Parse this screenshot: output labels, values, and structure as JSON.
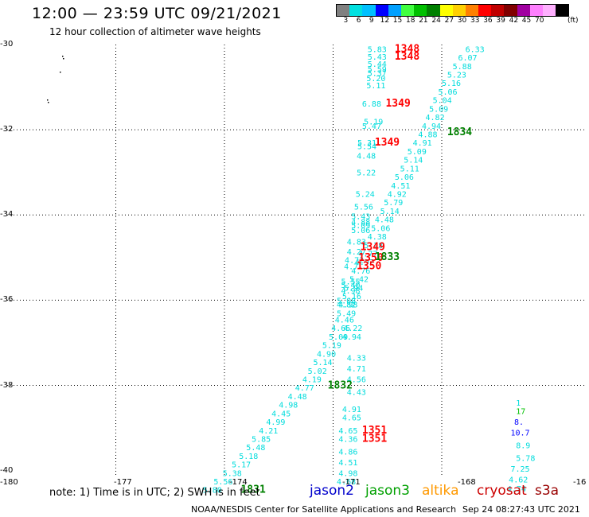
{
  "header": {
    "title": "12:00 — 23:59 UTC 09/21/2021",
    "subtitle": "12 hour collection of altimeter wave heights"
  },
  "color_scale": {
    "colors": [
      "#808080",
      "#00e0e0",
      "#00c0ff",
      "#0000ff",
      "#00a0ff",
      "#40ff40",
      "#00c000",
      "#008000",
      "#ffff00",
      "#ffd000",
      "#ff8000",
      "#ff0000",
      "#c00000",
      "#800000",
      "#a000a0",
      "#ff80ff",
      "#ffb0ff",
      "#000000"
    ],
    "labels": [
      "3",
      "6",
      "9",
      "12",
      "15",
      "18",
      "21",
      "24",
      "27",
      "30",
      "33",
      "36",
      "39",
      "42",
      "45",
      "70"
    ],
    "unit": "(ft)"
  },
  "axes": {
    "lat_labels": [
      "-30",
      "-32",
      "-34",
      "-36",
      "-38",
      "-40"
    ],
    "lon_labels": [
      "-180",
      "-177",
      "-174",
      "-171",
      "-168",
      "-16"
    ]
  },
  "cyan": "#00dcdc",
  "observations": [
    {
      "lon": -170.05,
      "lat": -30.1,
      "t": "5.83"
    },
    {
      "lon": -170.05,
      "lat": -30.28,
      "t": "5.43"
    },
    {
      "lon": -170.05,
      "lat": -30.45,
      "t": "5.44"
    },
    {
      "lon": -170.05,
      "lat": -30.57,
      "t": "5.59"
    },
    {
      "lon": -170.05,
      "lat": -30.66,
      "t": "5.37"
    },
    {
      "lon": -170.08,
      "lat": -30.78,
      "t": "5.20"
    },
    {
      "lon": -170.08,
      "lat": -30.95,
      "t": "5.11"
    },
    {
      "lon": -170.2,
      "lat": -31.38,
      "t": "6.88"
    },
    {
      "lon": -170.15,
      "lat": -31.8,
      "t": "5.19"
    },
    {
      "lon": -170.2,
      "lat": -31.9,
      "t": "5.47"
    },
    {
      "lon": -170.33,
      "lat": -32.3,
      "t": "5.31"
    },
    {
      "lon": -170.33,
      "lat": -32.38,
      "t": "5.54"
    },
    {
      "lon": -170.35,
      "lat": -32.6,
      "t": "4.48"
    },
    {
      "lon": -170.35,
      "lat": -33.0,
      "t": "5.22"
    },
    {
      "lon": -170.38,
      "lat": -33.5,
      "t": "5.24"
    },
    {
      "lon": -170.42,
      "lat": -33.8,
      "t": "5.56"
    },
    {
      "lon": -170.5,
      "lat": -34.02,
      "t": "5.43"
    },
    {
      "lon": -170.5,
      "lat": -34.15,
      "t": "4.88"
    },
    {
      "lon": -170.5,
      "lat": -34.24,
      "t": "5.09"
    },
    {
      "lon": -170.5,
      "lat": -34.35,
      "t": "5.06"
    },
    {
      "lon": -170.62,
      "lat": -34.62,
      "t": "4.83"
    },
    {
      "lon": -170.62,
      "lat": -34.85,
      "t": "4.27"
    },
    {
      "lon": -170.68,
      "lat": -35.05,
      "t": "4.72"
    },
    {
      "lon": -170.7,
      "lat": -35.2,
      "t": "4.7"
    },
    {
      "lon": -170.78,
      "lat": -35.55,
      "t": "5.55"
    },
    {
      "lon": -170.78,
      "lat": -35.64,
      "t": "5.40"
    },
    {
      "lon": -170.78,
      "lat": -35.77,
      "t": "4.98"
    },
    {
      "lon": -170.9,
      "lat": -36.0,
      "t": "5.08"
    },
    {
      "lon": -170.9,
      "lat": -36.1,
      "t": "4.82"
    },
    {
      "lon": -170.95,
      "lat": -36.45,
      "t": "4.46"
    },
    {
      "lon": -171.05,
      "lat": -36.65,
      "t": "4.65"
    },
    {
      "lon": -170.72,
      "lat": -36.65,
      "t": "4.22"
    },
    {
      "lon": -171.12,
      "lat": -36.85,
      "t": "5.09"
    },
    {
      "lon": -170.75,
      "lat": -36.85,
      "t": "4.94"
    },
    {
      "lon": -171.3,
      "lat": -37.05,
      "t": "5.19"
    },
    {
      "lon": -171.45,
      "lat": -37.25,
      "t": "4.90"
    },
    {
      "lon": -171.55,
      "lat": -37.45,
      "t": "5.14"
    },
    {
      "lon": -171.7,
      "lat": -37.65,
      "t": "5.02"
    },
    {
      "lon": -170.62,
      "lat": -37.35,
      "t": "4.33"
    },
    {
      "lon": -170.62,
      "lat": -37.6,
      "t": "4.71"
    },
    {
      "lon": -170.62,
      "lat": -37.85,
      "t": "4.56"
    },
    {
      "lon": -171.85,
      "lat": -37.85,
      "t": "4.19"
    },
    {
      "lon": -172.05,
      "lat": -38.05,
      "t": "4.77"
    },
    {
      "lon": -170.62,
      "lat": -38.15,
      "t": "4.43"
    },
    {
      "lon": -172.25,
      "lat": -38.25,
      "t": "4.48"
    },
    {
      "lon": -172.5,
      "lat": -38.45,
      "t": "4.98"
    },
    {
      "lon": -170.75,
      "lat": -38.55,
      "t": "4.91"
    },
    {
      "lon": -172.7,
      "lat": -38.65,
      "t": "4.45"
    },
    {
      "lon": -170.75,
      "lat": -38.75,
      "t": "4.65"
    },
    {
      "lon": -172.85,
      "lat": -38.85,
      "t": "4.99"
    },
    {
      "lon": -173.05,
      "lat": -39.05,
      "t": "4.21"
    },
    {
      "lon": -170.85,
      "lat": -39.05,
      "t": "4.65"
    },
    {
      "lon": -173.25,
      "lat": -39.25,
      "t": "5.85"
    },
    {
      "lon": -170.85,
      "lat": -39.25,
      "t": "4.36"
    },
    {
      "lon": -173.4,
      "lat": -39.45,
      "t": "5.48"
    },
    {
      "lon": -170.85,
      "lat": -39.55,
      "t": "4.86"
    },
    {
      "lon": -173.6,
      "lat": -39.65,
      "t": "5.18"
    },
    {
      "lon": -170.85,
      "lat": -39.8,
      "t": "4.51"
    },
    {
      "lon": -173.8,
      "lat": -39.85,
      "t": "5.17"
    },
    {
      "lon": -174.05,
      "lat": -40.05,
      "t": "5.38"
    },
    {
      "lon": -170.85,
      "lat": -40.05,
      "t": "4.98"
    },
    {
      "lon": -174.3,
      "lat": -40.25,
      "t": "5.56"
    },
    {
      "lon": -170.9,
      "lat": -40.25,
      "t": "4.68"
    },
    {
      "lon": -174.6,
      "lat": -40.45,
      "t": "5.80"
    },
    {
      "lon": -167.35,
      "lat": -30.1,
      "t": "6.33"
    },
    {
      "lon": -167.55,
      "lat": -30.3,
      "t": "6.07"
    },
    {
      "lon": -167.7,
      "lat": -30.5,
      "t": "5.88"
    },
    {
      "lon": -167.85,
      "lat": -30.7,
      "t": "5.23"
    },
    {
      "lon": -168.0,
      "lat": -30.9,
      "t": "5.16"
    },
    {
      "lon": -168.1,
      "lat": -31.1,
      "t": "5.06"
    },
    {
      "lon": -168.25,
      "lat": -31.3,
      "t": "5.04"
    },
    {
      "lon": -168.35,
      "lat": -31.5,
      "t": "5.09"
    },
    {
      "lon": -168.45,
      "lat": -31.7,
      "t": "4.82"
    },
    {
      "lon": -168.55,
      "lat": -31.9,
      "t": "4.94"
    },
    {
      "lon": -168.65,
      "lat": -32.1,
      "t": "4.88"
    },
    {
      "lon": -168.8,
      "lat": -32.3,
      "t": "4.91"
    },
    {
      "lon": -168.95,
      "lat": -32.5,
      "t": "5.09"
    },
    {
      "lon": -169.05,
      "lat": -32.7,
      "t": "5.14"
    },
    {
      "lon": -169.15,
      "lat": -32.9,
      "t": "5.11"
    },
    {
      "lon": -169.3,
      "lat": -33.1,
      "t": "5.06"
    },
    {
      "lon": -169.4,
      "lat": -33.3,
      "t": "4.51"
    },
    {
      "lon": -169.5,
      "lat": -33.5,
      "t": "4.92"
    },
    {
      "lon": -169.6,
      "lat": -33.7,
      "t": "5.79"
    },
    {
      "lon": -169.7,
      "lat": -33.9,
      "t": "5.14"
    },
    {
      "lon": -169.85,
      "lat": -34.1,
      "t": "4.48"
    },
    {
      "lon": -169.95,
      "lat": -34.3,
      "t": "5.06"
    },
    {
      "lon": -170.05,
      "lat": -34.5,
      "t": "4.38"
    },
    {
      "lon": -170.15,
      "lat": -34.7,
      "t": "5.28"
    },
    {
      "lon": -170.3,
      "lat": -34.9,
      "t": "4.77"
    },
    {
      "lon": -170.4,
      "lat": -35.1,
      "t": "4.92"
    },
    {
      "lon": -170.5,
      "lat": -35.3,
      "t": "4.76"
    },
    {
      "lon": -170.55,
      "lat": -35.5,
      "t": "5.42"
    },
    {
      "lon": -170.7,
      "lat": -35.7,
      "t": "5.94"
    },
    {
      "lon": -170.75,
      "lat": -35.9,
      "t": "5.16"
    },
    {
      "lon": -170.85,
      "lat": -36.1,
      "t": "4.98"
    },
    {
      "lon": -170.9,
      "lat": -36.3,
      "t": "5.49"
    },
    {
      "lon": -165.95,
      "lat": -38.4,
      "t": "1"
    },
    {
      "lon": -165.95,
      "lat": -39.4,
      "t": "8.9"
    },
    {
      "lon": -165.95,
      "lat": -39.7,
      "t": "5.78"
    },
    {
      "lon": -166.1,
      "lat": -39.95,
      "t": "7.25"
    },
    {
      "lon": -166.15,
      "lat": -40.2,
      "t": "4.62"
    },
    {
      "lon": -166.2,
      "lat": -40.42,
      "t": "4.74"
    }
  ],
  "observations_green": [
    {
      "lon": -165.95,
      "lat": -38.6,
      "t": "17"
    }
  ],
  "observations_blue": [
    {
      "lon": -166.0,
      "lat": -38.85,
      "t": "8."
    },
    {
      "lon": -166.1,
      "lat": -39.1,
      "t": "10.7"
    }
  ],
  "pass_labels": [
    {
      "lon": -169.3,
      "lat": -30.1,
      "t": "1348",
      "c": "#ff0000"
    },
    {
      "lon": -169.3,
      "lat": -30.28,
      "t": "1348",
      "c": "#ff0000"
    },
    {
      "lon": -169.55,
      "lat": -31.38,
      "t": "1349",
      "c": "#ff0000"
    },
    {
      "lon": -169.85,
      "lat": -32.3,
      "t": "1349",
      "c": "#ff0000"
    },
    {
      "lon": -167.85,
      "lat": -32.05,
      "t": "1834",
      "c": "#008000"
    },
    {
      "lon": -170.25,
      "lat": -34.75,
      "t": "1349",
      "c": "#ff0000"
    },
    {
      "lon": -170.3,
      "lat": -35.0,
      "t": "1350",
      "c": "#ff0000"
    },
    {
      "lon": -170.35,
      "lat": -35.2,
      "t": "1350",
      "c": "#ff0000"
    },
    {
      "lon": -169.85,
      "lat": -34.98,
      "t": "1833",
      "c": "#008000"
    },
    {
      "lon": -171.15,
      "lat": -38.0,
      "t": "1832",
      "c": "#008000"
    },
    {
      "lon": -170.2,
      "lat": -39.05,
      "t": "1351",
      "c": "#ff0000"
    },
    {
      "lon": -170.2,
      "lat": -39.25,
      "t": "1351",
      "c": "#ff0000"
    },
    {
      "lon": -173.55,
      "lat": -40.45,
      "t": "1831",
      "c": "#008000"
    }
  ],
  "footer": {
    "note": "note: 1) Time is in UTC; 2) SWH is in feet",
    "legend": [
      {
        "label": "jason2",
        "color": "#0000cc"
      },
      {
        "label": "jason3",
        "color": "#00a000"
      },
      {
        "label": "altika",
        "color": "#ff9900"
      },
      {
        "label": "cryosat",
        "color": "#cc0000"
      },
      {
        "label": "s3a",
        "color": "#990000"
      }
    ],
    "credit": "NOAA/NESDIS Center for Satellite Applications and Research",
    "datestamp": "Sep 24 08:27:43 UTC 2021"
  }
}
